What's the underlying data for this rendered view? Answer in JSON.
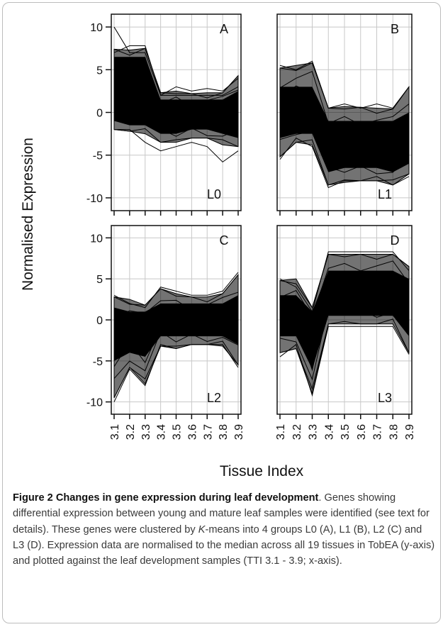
{
  "figure": {
    "ylabel": "Normalised Expression",
    "xlabel": "Tissue Index"
  },
  "chart_data": {
    "type": "line",
    "layout": "2x2 facets",
    "ylabel": "Normalised Expression",
    "xlabel": "Tissue Index",
    "x": [
      "3.1",
      "3.2",
      "3.3",
      "3.4",
      "3.5",
      "3.6",
      "3.7",
      "3.8",
      "3.9"
    ],
    "ylim": [
      -11.5,
      11.5
    ],
    "yticks": [
      10,
      5,
      0,
      -5,
      -10
    ],
    "grid": true,
    "panels": [
      {
        "letter": "A",
        "cluster": "L0",
        "upper": [
          7.4,
          7.3,
          7.5,
          2.3,
          2.5,
          2.2,
          2.3,
          2.3,
          4.3
        ],
        "lower": [
          -2.0,
          -2.2,
          -2.5,
          -3.5,
          -3.5,
          -3.0,
          -3.0,
          -3.8,
          -4.0
        ],
        "core_upper": [
          6.5,
          6.5,
          6.5,
          1.5,
          1.5,
          1.5,
          1.5,
          1.5,
          2.5
        ],
        "core_lower": [
          -1.0,
          -1.5,
          -1.5,
          -2.5,
          -2.5,
          -2.0,
          -2.0,
          -2.5,
          -3.0
        ],
        "outliers": [
          [
            10,
            7,
            7,
            2,
            2,
            2,
            2,
            2,
            3
          ],
          [
            -2,
            -2,
            -3.5,
            -4.5,
            -4,
            -3.5,
            -4,
            -5.8,
            -4.5
          ],
          [
            7,
            7.8,
            7.8,
            2,
            3,
            2.5,
            2.8,
            2.5,
            4
          ]
        ]
      },
      {
        "letter": "B",
        "cluster": "L1",
        "upper": [
          5.2,
          5.5,
          5.8,
          0.5,
          0.7,
          0.6,
          0.5,
          0.4,
          3.0
        ],
        "lower": [
          -5.2,
          -3.5,
          -3.8,
          -8.5,
          -8.2,
          -8.0,
          -8.0,
          -8.5,
          -7.2
        ],
        "core_upper": [
          3.0,
          3.0,
          3.0,
          -1.0,
          -1.0,
          -1.0,
          -1.0,
          -1.0,
          0.0
        ],
        "core_lower": [
          -3.0,
          -2.5,
          -2.5,
          -7.0,
          -6.5,
          -6.5,
          -6.5,
          -7.0,
          -6.0
        ],
        "outliers": [
          [
            5.5,
            5,
            6,
            0.5,
            1,
            0.5,
            1,
            0.5,
            3
          ],
          [
            -5.5,
            -3,
            -4,
            -8.8,
            -8,
            -8,
            -7.5,
            -8.5,
            -7.5
          ]
        ]
      },
      {
        "letter": "C",
        "cluster": "L2",
        "upper": [
          2.8,
          2.5,
          1.8,
          3.8,
          3.2,
          2.8,
          2.8,
          3.2,
          5.5
        ],
        "lower": [
          -9.5,
          -5.8,
          -7.8,
          -3.2,
          -3.5,
          -3.0,
          -3.0,
          -3.2,
          -5.5
        ],
        "core_upper": [
          1.5,
          1.0,
          1.0,
          2.0,
          2.0,
          2.0,
          2.0,
          2.0,
          3.0
        ],
        "core_lower": [
          -5.0,
          -4.0,
          -4.5,
          -2.0,
          -2.0,
          -2.0,
          -2.0,
          -2.0,
          -3.0
        ],
        "outliers": [
          [
            -10,
            -6,
            -8,
            -3,
            -3.5,
            -3,
            -3,
            -3,
            -5.8
          ],
          [
            3,
            2,
            1.5,
            4,
            3.5,
            3,
            3,
            3.5,
            5.8
          ]
        ]
      },
      {
        "letter": "D",
        "cluster": "L3",
        "upper": [
          4.8,
          5.0,
          1.5,
          8.0,
          8.0,
          8.0,
          8.0,
          8.0,
          6.5
        ],
        "lower": [
          -4.0,
          -3.5,
          -9.0,
          -0.5,
          -0.5,
          -0.5,
          -0.5,
          -0.5,
          -4.0
        ],
        "core_upper": [
          3.0,
          3.0,
          1.0,
          6.0,
          6.0,
          6.0,
          6.0,
          6.0,
          5.0
        ],
        "core_lower": [
          -2.0,
          -2.0,
          -6.0,
          0.5,
          0.5,
          0.5,
          0.5,
          0.5,
          -2.0
        ],
        "outliers": [
          [
            5,
            4,
            1,
            8.3,
            8.3,
            8.3,
            8.3,
            8.3,
            6
          ],
          [
            -4.5,
            -3,
            -9.2,
            -0.8,
            -0.8,
            -0.8,
            -0.8,
            -0.8,
            -4.2
          ]
        ]
      }
    ]
  },
  "caption": {
    "title": "Figure 2 Changes in gene expression during leaf development",
    "body_a": ". Genes showing differential expression between young and mature leaf samples were identified (see text for details). These genes were clustered by ",
    "kmeans": "K",
    "body_b": "-means into 4 groups L0 (A), L1 (B), L2 (C) and L3 (D). Expression data are normalised to the median across all 19 tissues in TobEA (y-axis) and plotted against the leaf development samples (TTI 3.1 - 3.9; x-axis)."
  }
}
